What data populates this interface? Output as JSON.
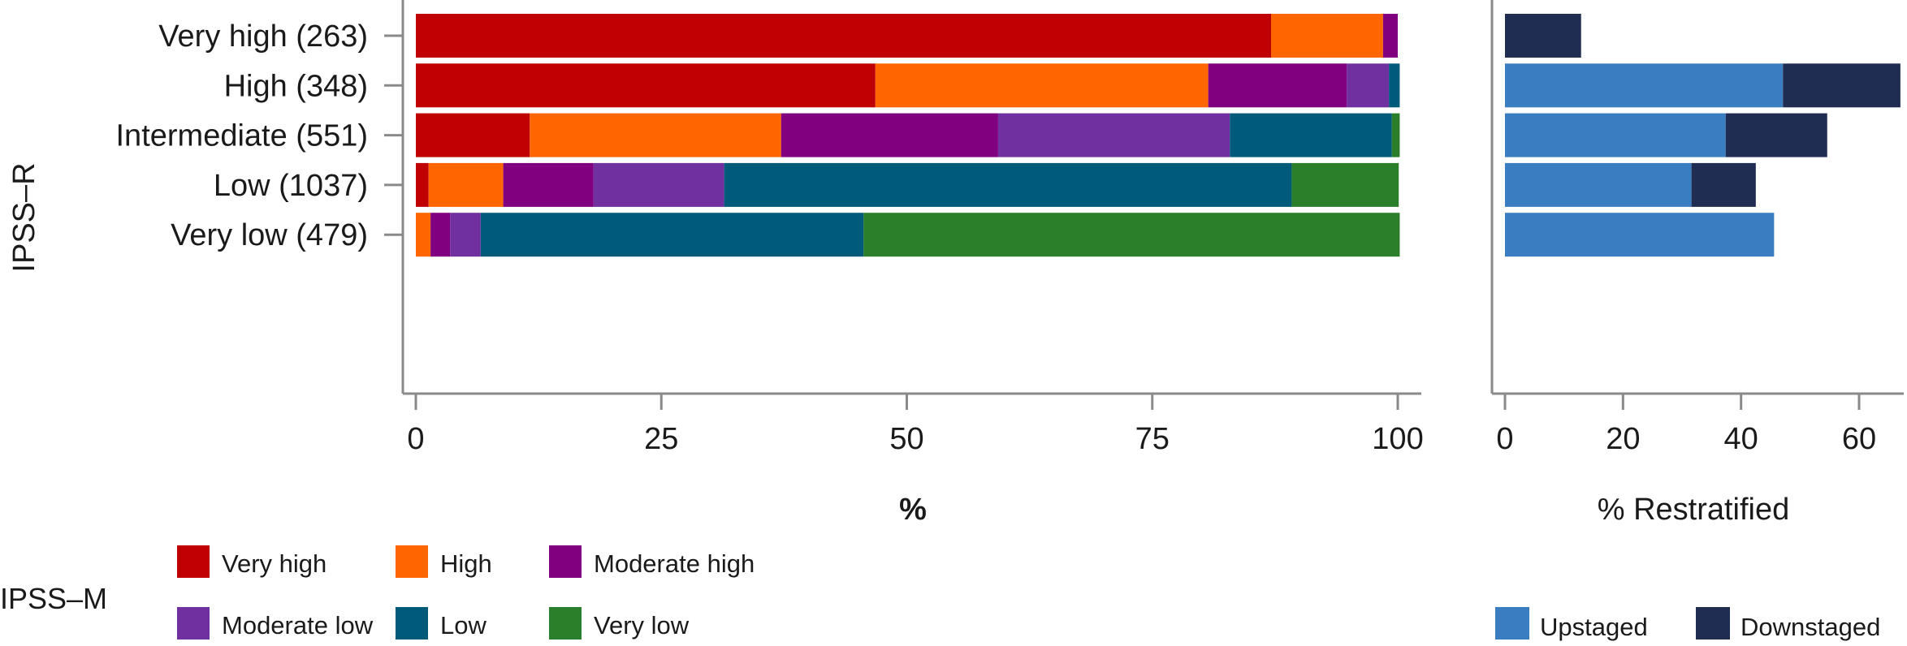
{
  "chart_data": [
    {
      "type": "bar",
      "orientation": "horizontal",
      "stacked": true,
      "ylabel": "IPSS–R",
      "xlabel": "%",
      "xlim": [
        0,
        100
      ],
      "xticks": [
        "0",
        "25",
        "50",
        "75",
        "100"
      ],
      "categories": [
        "Very high (263)",
        "High (348)",
        "Intermediate (551)",
        "Low (1037)",
        "Very low (479)"
      ],
      "series": [
        {
          "name": "Very high",
          "color": "#C00000",
          "values": [
            87.1,
            46.8,
            11.6,
            1.3,
            0
          ]
        },
        {
          "name": "High",
          "color": "#FF6600",
          "values": [
            11.4,
            33.9,
            25.6,
            7.6,
            1.5
          ]
        },
        {
          "name": "Moderate high",
          "color": "#800080",
          "values": [
            1.5,
            14.1,
            22.1,
            9.2,
            2.0
          ]
        },
        {
          "name": "Moderate low",
          "color": "#7030A0",
          "values": [
            0,
            4.3,
            23.6,
            13.3,
            3.1
          ]
        },
        {
          "name": "Low",
          "color": "#005A7A",
          "values": [
            0,
            1.1,
            16.5,
            57.8,
            39.0
          ]
        },
        {
          "name": "Very low",
          "color": "#2B7F2B",
          "values": [
            0,
            0,
            0.8,
            10.9,
            54.6
          ]
        }
      ]
    },
    {
      "type": "bar",
      "orientation": "horizontal",
      "stacked": true,
      "xlabel": "% Restratified",
      "xlim": [
        0,
        67
      ],
      "xticks": [
        "0",
        "20",
        "40",
        "60"
      ],
      "categories": [
        "Very high (263)",
        "High (348)",
        "Intermediate (551)",
        "Low (1037)",
        "Very low (479)"
      ],
      "series": [
        {
          "name": "Upstaged",
          "color": "#3A7EC1",
          "values": [
            0,
            47.1,
            37.4,
            31.6,
            45.6
          ]
        },
        {
          "name": "Downstaged",
          "color": "#1F2D52",
          "values": [
            12.9,
            19.9,
            17.2,
            10.9,
            0
          ]
        }
      ]
    }
  ],
  "legend_ipssm": {
    "title": "IPSS–M",
    "items": [
      {
        "label": "Very high",
        "color": "#C00000"
      },
      {
        "label": "High",
        "color": "#FF6600"
      },
      {
        "label": "Moderate high",
        "color": "#800080"
      },
      {
        "label": "Moderate low",
        "color": "#7030A0"
      },
      {
        "label": "Low",
        "color": "#005A7A"
      },
      {
        "label": "Very low",
        "color": "#2B7F2B"
      }
    ]
  },
  "legend_restrat": {
    "items": [
      {
        "label": "Upstaged",
        "color": "#3A7EC1"
      },
      {
        "label": "Downstaged",
        "color": "#1F2D52"
      }
    ]
  }
}
